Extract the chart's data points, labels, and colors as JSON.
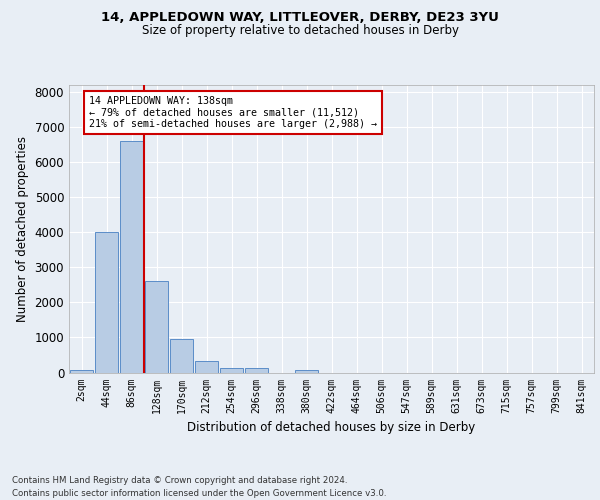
{
  "title1": "14, APPLEDOWN WAY, LITTLEOVER, DERBY, DE23 3YU",
  "title2": "Size of property relative to detached houses in Derby",
  "xlabel": "Distribution of detached houses by size in Derby",
  "ylabel": "Number of detached properties",
  "bin_labels": [
    "2sqm",
    "44sqm",
    "86sqm",
    "128sqm",
    "170sqm",
    "212sqm",
    "254sqm",
    "296sqm",
    "338sqm",
    "380sqm",
    "422sqm",
    "464sqm",
    "506sqm",
    "547sqm",
    "589sqm",
    "631sqm",
    "673sqm",
    "715sqm",
    "757sqm",
    "799sqm",
    "841sqm"
  ],
  "bar_values": [
    60,
    4000,
    6600,
    2600,
    950,
    330,
    120,
    120,
    0,
    80,
    0,
    0,
    0,
    0,
    0,
    0,
    0,
    0,
    0,
    0,
    0
  ],
  "bar_color": "#b8cce4",
  "bar_edge_color": "#5b8dc8",
  "vline_color": "#cc0000",
  "annotation_text": "14 APPLEDOWN WAY: 138sqm\n← 79% of detached houses are smaller (11,512)\n21% of semi-detached houses are larger (2,988) →",
  "annotation_box_color": "#ffffff",
  "annotation_box_edge": "#cc0000",
  "ylim": [
    0,
    8200
  ],
  "yticks": [
    0,
    1000,
    2000,
    3000,
    4000,
    5000,
    6000,
    7000,
    8000
  ],
  "footer1": "Contains HM Land Registry data © Crown copyright and database right 2024.",
  "footer2": "Contains public sector information licensed under the Open Government Licence v3.0.",
  "bg_color": "#e8eef5",
  "plot_bg_color": "#e8eef5"
}
